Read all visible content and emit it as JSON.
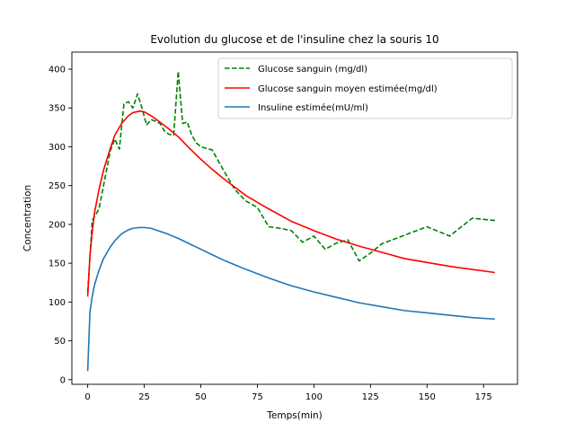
{
  "chart_data": {
    "type": "line",
    "title": "Evolution du glucose et de l'insuline chez la souris 10",
    "xlabel": "Temps(min)",
    "ylabel": "Concentration",
    "xlim": [
      -7,
      190
    ],
    "ylim": [
      -6,
      422
    ],
    "xticks": [
      0,
      25,
      50,
      75,
      100,
      125,
      150,
      175
    ],
    "yticks": [
      0,
      50,
      100,
      150,
      200,
      250,
      300,
      350,
      400
    ],
    "grid": false,
    "legend_position": "top-right",
    "series": [
      {
        "name": "Glucose sanguin (mg/dl)",
        "color": "#008000",
        "style": "dashed",
        "x": [
          0,
          2,
          5,
          7,
          10,
          12,
          14,
          16,
          18,
          20,
          22,
          24,
          26,
          28,
          30,
          32,
          34,
          36,
          38,
          40,
          42,
          44,
          46,
          48,
          50,
          55,
          60,
          65,
          70,
          75,
          80,
          85,
          90,
          95,
          100,
          105,
          110,
          115,
          120,
          125,
          130,
          140,
          150,
          160,
          170,
          180
        ],
        "y": [
          113,
          205,
          220,
          250,
          295,
          310,
          297,
          355,
          358,
          350,
          368,
          350,
          328,
          335,
          333,
          330,
          320,
          316,
          315,
          397,
          330,
          332,
          315,
          305,
          300,
          296,
          270,
          245,
          230,
          222,
          197,
          195,
          192,
          177,
          185,
          168,
          176,
          180,
          153,
          163,
          175,
          186,
          197,
          185,
          208,
          205
        ]
      },
      {
        "name": "Glucose sanguin moyen estimée(mg/dl)",
        "color": "#ff0000",
        "style": "solid",
        "x": [
          0,
          1,
          2,
          3,
          5,
          7,
          10,
          12,
          15,
          18,
          20,
          23,
          25,
          28,
          30,
          35,
          40,
          45,
          50,
          55,
          60,
          70,
          80,
          90,
          100,
          110,
          120,
          130,
          140,
          150,
          160,
          170,
          180
        ],
        "y": [
          107,
          160,
          190,
          215,
          245,
          270,
          298,
          315,
          330,
          340,
          344,
          346,
          345,
          340,
          336,
          325,
          313,
          298,
          284,
          271,
          259,
          237,
          220,
          204,
          192,
          181,
          172,
          164,
          156,
          151,
          146,
          142,
          138
        ]
      },
      {
        "name": "Insuline estimée(mU/ml)",
        "color": "#1f77b4",
        "style": "solid",
        "x": [
          0,
          1,
          2,
          3,
          5,
          7,
          10,
          12,
          15,
          18,
          20,
          23,
          25,
          28,
          30,
          35,
          40,
          45,
          50,
          55,
          60,
          70,
          80,
          90,
          100,
          110,
          120,
          130,
          140,
          150,
          160,
          170,
          180
        ],
        "y": [
          11,
          88,
          107,
          122,
          141,
          156,
          171,
          179,
          188,
          193,
          195,
          196,
          196,
          195,
          193,
          188,
          182,
          175,
          168,
          161,
          154,
          142,
          131,
          121,
          113,
          106,
          99,
          94,
          89,
          86,
          83,
          80,
          78
        ]
      }
    ]
  }
}
